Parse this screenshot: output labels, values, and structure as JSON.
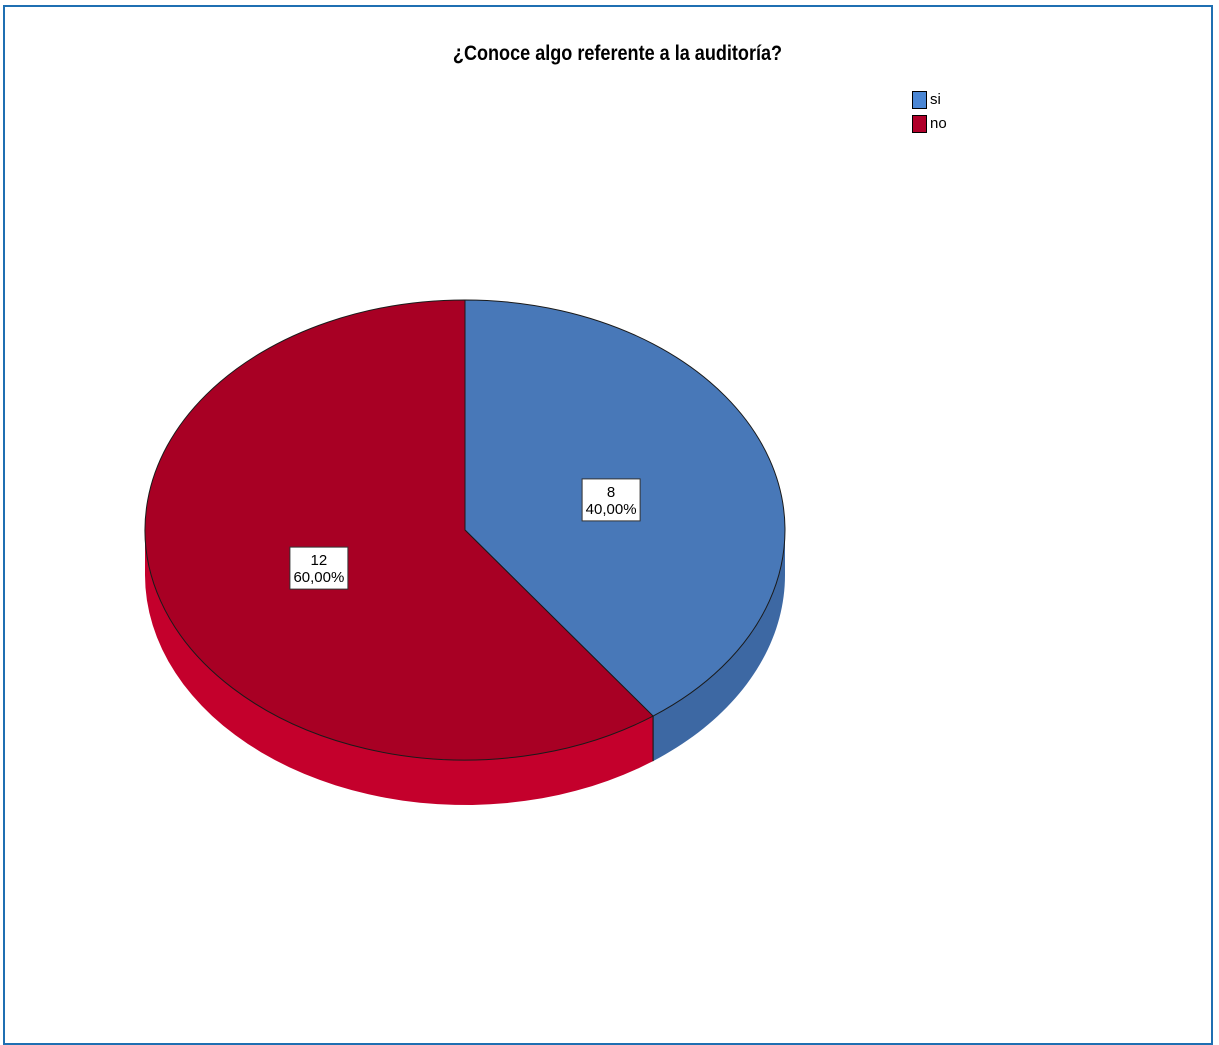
{
  "chart_data": {
    "type": "pie",
    "title": "¿Conoce algo referente a la auditoría?",
    "categories": [
      "si",
      "no"
    ],
    "values": [
      8,
      12
    ],
    "percent_labels": [
      "40,00%",
      "60,00%"
    ],
    "colors": [
      "#4878b8",
      "#a80024"
    ],
    "side_colors": [
      "#3d68a3",
      "#c4002c"
    ],
    "legend": {
      "placement": "top-right",
      "items": [
        {
          "label": "si",
          "color": "#4a86d4"
        },
        {
          "label": "no",
          "color": "#b0002a"
        }
      ]
    },
    "style": "3d"
  }
}
